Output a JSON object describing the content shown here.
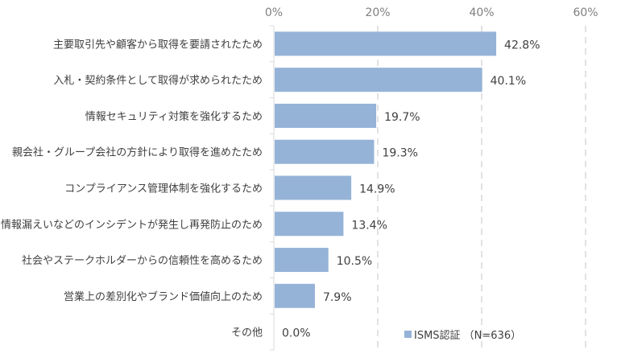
{
  "chart_data": {
    "type": "bar",
    "orientation": "horizontal",
    "categories": [
      "主要取引先や顧客から取得を要請されたため",
      "入札・契約条件として取得が求められたため",
      "情報セキュリティ対策を強化するため",
      "親会社・グループ会社の方針により取得を進めたため",
      "コンプライアンス管理体制を強化するため",
      "情報漏えいなどのインシデントが発生し再発防止のため",
      "社会やステークホルダーからの信頼性を高めるため",
      "営業上の差別化やブランド価値向上のため",
      "その他"
    ],
    "series": [
      {
        "name": "ISMS認証 （N=636）",
        "values": [
          42.8,
          40.1,
          19.7,
          19.3,
          14.9,
          13.4,
          10.5,
          7.9,
          0.0
        ],
        "color": "#95b3d7"
      }
    ],
    "data_labels": [
      "42.8%",
      "40.1%",
      "19.7%",
      "19.3%",
      "14.9%",
      "13.4%",
      "10.5%",
      "7.9%",
      "0.0%"
    ],
    "xlim": [
      0,
      60
    ],
    "xticks": [
      0,
      20,
      40,
      60
    ],
    "xtick_labels": [
      "0%",
      "20%",
      "40%",
      "60%"
    ],
    "x_axis_position": "top",
    "grid": "vertical dashed",
    "legend_position": "bottom-center"
  }
}
